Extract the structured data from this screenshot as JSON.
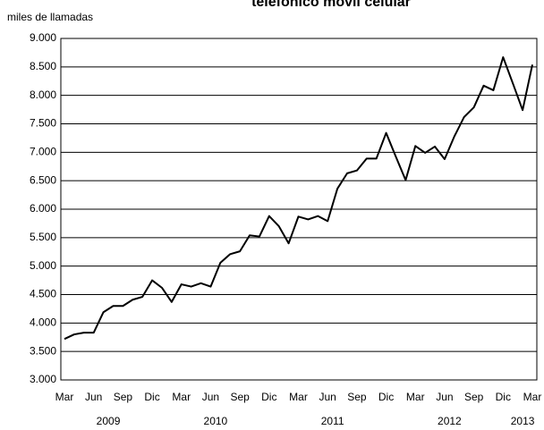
{
  "chart_data": {
    "type": "line",
    "title": "telefónico móvil celular",
    "y_label": "miles de llamadas",
    "categories": [
      "Mar",
      null,
      null,
      "Jun",
      null,
      null,
      "Sep",
      null,
      null,
      "Dic",
      null,
      null,
      "Mar",
      null,
      null,
      "Jun",
      null,
      null,
      "Sep",
      null,
      null,
      "Dic",
      null,
      null,
      "Mar",
      null,
      null,
      "Jun",
      null,
      null,
      "Sep",
      null,
      null,
      "Dic",
      null,
      null,
      "Mar",
      null,
      null,
      "Jun",
      null,
      null,
      "Sep",
      null,
      null,
      "Dic",
      null,
      null,
      "Mar"
    ],
    "years": [
      2009,
      2010,
      2011,
      2012,
      2013
    ],
    "series": [
      {
        "color": "#000000",
        "values": [
          3720,
          3800,
          3830,
          3830,
          4190,
          4300,
          4300,
          4410,
          4460,
          4750,
          4620,
          4370,
          4680,
          4640,
          4700,
          4640,
          5060,
          5210,
          5260,
          5540,
          5520,
          5880,
          5700,
          5400,
          5870,
          5820,
          5880,
          5790,
          6360,
          6630,
          6680,
          6890,
          6890,
          7340,
          6920,
          6510,
          7110,
          6990,
          7100,
          6880,
          7280,
          7620,
          7790,
          8170,
          8090,
          8670,
          8210,
          7740,
          8540
        ]
      }
    ],
    "ylim": [
      3000,
      9000
    ],
    "yticks": [
      {
        "value": 3000,
        "label": "3.000"
      },
      {
        "value": 3500,
        "label": "3.500"
      },
      {
        "value": 4000,
        "label": "4.000"
      },
      {
        "value": 4500,
        "label": "4.500"
      },
      {
        "value": 5000,
        "label": "5.000"
      },
      {
        "value": 5500,
        "label": "5.500"
      },
      {
        "value": 6000,
        "label": "6.000"
      },
      {
        "value": 6500,
        "label": "6.500"
      },
      {
        "value": 7000,
        "label": "7.000"
      },
      {
        "value": 7500,
        "label": "7.500"
      },
      {
        "value": 8000,
        "label": "8.000"
      },
      {
        "value": 8500,
        "label": "8.500"
      },
      {
        "value": 9000,
        "label": "9.000"
      }
    ],
    "grid": true
  }
}
